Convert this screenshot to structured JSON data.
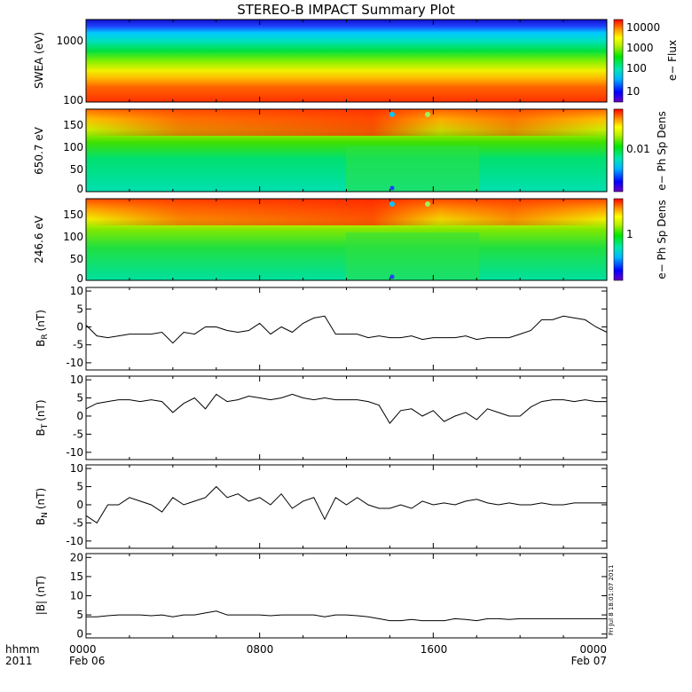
{
  "title": "STEREO-B IMPACT Summary Plot",
  "time_axis": {
    "row1": "hhmm",
    "row2": "2011",
    "ticks": [
      {
        "label": "0000",
        "date": "Feb 06",
        "hours": 0
      },
      {
        "label": "0800",
        "date": "",
        "hours": 8
      },
      {
        "label": "1600",
        "date": "",
        "hours": 16
      },
      {
        "label": "0000",
        "date": "Feb 07",
        "hours": 24
      }
    ]
  },
  "timestamp": "Fri Jul  8 18:01:07 2011",
  "chart_data": [
    {
      "type": "heatmap",
      "panel": "swea",
      "ylabel": "SWEA (eV)",
      "yscale": "log",
      "ylim": [
        95,
        2000
      ],
      "yticks": [
        "1000",
        "100"
      ],
      "colorbar_label": "e− Flux",
      "colorbar_ticks": [
        "10000",
        "1000",
        "100",
        "10"
      ]
    },
    {
      "type": "heatmap",
      "panel": "pad650",
      "ylabel": "650.7 eV",
      "ylim": [
        -5,
        180
      ],
      "yticks": [
        "150",
        "100",
        "50",
        "0"
      ],
      "colorbar_label": "e− Ph Sp Dens",
      "colorbar_ticks": [
        "0.01"
      ]
    },
    {
      "type": "heatmap",
      "panel": "pad246",
      "ylabel": "246.6 eV",
      "ylim": [
        -5,
        180
      ],
      "yticks": [
        "150",
        "100",
        "50",
        "0"
      ],
      "colorbar_label": "e− Ph Sp Dens",
      "colorbar_ticks": [
        "1"
      ]
    },
    {
      "type": "line",
      "panel": "br",
      "ylabel": "B",
      "ylabel_sub": "R",
      "ylabel_unit": "(nT)",
      "ylim": [
        -12,
        11
      ],
      "yticks": [
        10,
        5,
        0,
        -5,
        -10
      ],
      "x_hours": [
        0,
        0.5,
        1,
        1.5,
        2,
        2.5,
        3,
        3.5,
        4,
        4.5,
        5,
        5.5,
        6,
        6.5,
        7,
        7.5,
        8,
        8.5,
        9,
        9.5,
        10,
        10.5,
        11,
        11.5,
        12,
        12.5,
        13,
        13.5,
        14,
        14.5,
        15,
        15.5,
        16,
        16.5,
        17,
        17.5,
        18,
        18.5,
        19,
        19.5,
        20,
        20.5,
        21,
        21.5,
        22,
        22.5,
        23,
        23.5,
        24
      ],
      "values": [
        0.5,
        -2.5,
        -3,
        -2.5,
        -2,
        -2,
        -2,
        -1.5,
        -4.5,
        -1.5,
        -2,
        0,
        0,
        -1,
        -1.5,
        -1,
        1,
        -2,
        0,
        -1.5,
        1,
        2.5,
        3,
        -2,
        -2,
        -2,
        -3,
        -2.5,
        -3,
        -3,
        -2.5,
        -3.5,
        -3,
        -3,
        -3,
        -2.5,
        -3.5,
        -3,
        -3,
        -3,
        -2,
        -1,
        2,
        2,
        3,
        2.5,
        2,
        0,
        -1.5
      ]
    },
    {
      "type": "line",
      "panel": "bt",
      "ylabel": "B",
      "ylabel_sub": "T",
      "ylabel_unit": "(nT)",
      "ylim": [
        -12,
        11
      ],
      "yticks": [
        10,
        5,
        0,
        -5,
        -10
      ],
      "x_hours": [
        0,
        0.5,
        1,
        1.5,
        2,
        2.5,
        3,
        3.5,
        4,
        4.5,
        5,
        5.5,
        6,
        6.5,
        7,
        7.5,
        8,
        8.5,
        9,
        9.5,
        10,
        10.5,
        11,
        11.5,
        12,
        12.5,
        13,
        13.5,
        14,
        14.5,
        15,
        15.5,
        16,
        16.5,
        17,
        17.5,
        18,
        18.5,
        19,
        19.5,
        20,
        20.5,
        21,
        21.5,
        22,
        22.5,
        23,
        23.5,
        24
      ],
      "values": [
        2,
        3.5,
        4,
        4.5,
        4.5,
        4,
        4.5,
        4,
        1,
        3.5,
        5,
        2,
        6,
        4,
        4.5,
        5.5,
        5,
        4.5,
        5,
        6,
        5,
        4.5,
        5,
        4.5,
        4.5,
        4.5,
        4,
        3,
        -2,
        1.5,
        2,
        0,
        1.5,
        -1.5,
        0,
        1,
        -1,
        2,
        1,
        0,
        0,
        2.5,
        4,
        4.5,
        4.5,
        4,
        4.5,
        4,
        4
      ]
    },
    {
      "type": "line",
      "panel": "bn",
      "ylabel": "B",
      "ylabel_sub": "N",
      "ylabel_unit": "(nT)",
      "ylim": [
        -12,
        11
      ],
      "yticks": [
        10,
        5,
        0,
        -5,
        -10
      ],
      "x_hours": [
        0,
        0.5,
        1,
        1.5,
        2,
        2.5,
        3,
        3.5,
        4,
        4.5,
        5,
        5.5,
        6,
        6.5,
        7,
        7.5,
        8,
        8.5,
        9,
        9.5,
        10,
        10.5,
        11,
        11.5,
        12,
        12.5,
        13,
        13.5,
        14,
        14.5,
        15,
        15.5,
        16,
        16.5,
        17,
        17.5,
        18,
        18.5,
        19,
        19.5,
        20,
        20.5,
        21,
        21.5,
        22,
        22.5,
        23,
        23.5,
        24
      ],
      "values": [
        -3,
        -5,
        0,
        0,
        2,
        1,
        0,
        -2,
        2,
        0,
        1,
        2,
        5,
        2,
        3,
        1,
        2,
        0,
        3,
        -1,
        1,
        2,
        -4,
        2,
        0,
        2,
        0,
        -1,
        -1,
        0,
        -1,
        1,
        0,
        0.5,
        0,
        1,
        1.5,
        0.5,
        0,
        0.5,
        0,
        0,
        0.5,
        0,
        0,
        0.5,
        0.5,
        0.5,
        0.5
      ]
    },
    {
      "type": "line",
      "panel": "bmag",
      "ylabel": "|B| (nT)",
      "ylim": [
        -1,
        21
      ],
      "yticks": [
        20,
        15,
        10,
        5,
        0
      ],
      "x_hours": [
        0,
        0.5,
        1,
        1.5,
        2,
        2.5,
        3,
        3.5,
        4,
        4.5,
        5,
        5.5,
        6,
        6.5,
        7,
        7.5,
        8,
        8.5,
        9,
        9.5,
        10,
        10.5,
        11,
        11.5,
        12,
        12.5,
        13,
        13.5,
        14,
        14.5,
        15,
        15.5,
        16,
        16.5,
        17,
        17.5,
        18,
        18.5,
        19,
        19.5,
        20,
        20.5,
        21,
        21.5,
        22,
        22.5,
        23,
        23.5,
        24
      ],
      "values": [
        4.5,
        4.5,
        4.8,
        5,
        5,
        5,
        4.8,
        5,
        4.5,
        5,
        5,
        5.5,
        6,
        5,
        5,
        5,
        5,
        4.8,
        5,
        5,
        5,
        5,
        4.5,
        5,
        5,
        4.8,
        4.5,
        4,
        3.5,
        3.5,
        3.8,
        3.5,
        3.5,
        3.5,
        4,
        3.8,
        3.5,
        4,
        4,
        3.8,
        4,
        4,
        4,
        4,
        4,
        4,
        4,
        4,
        4
      ]
    }
  ]
}
